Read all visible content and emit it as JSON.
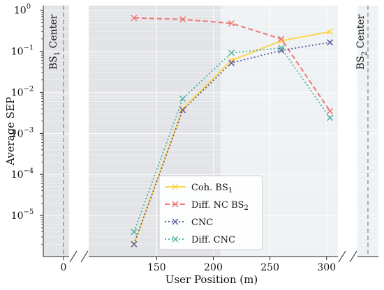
{
  "chart_data": {
    "type": "line",
    "title": "",
    "xlabel": "User Position (m)",
    "ylabel": "Average SEP",
    "yscale": "log",
    "ylim": [
      1e-06,
      1.3
    ],
    "xlim_main": [
      90,
      310
    ],
    "broken_x_axis": true,
    "x": [
      130,
      173,
      216,
      260,
      303
    ],
    "x_ticks": [
      150,
      200,
      250,
      300
    ],
    "x_tick_labels": [
      "150",
      "200",
      "250",
      "300"
    ],
    "left_panel_ticks": [
      "0"
    ],
    "y_tick_labels": [
      {
        "base": "10",
        "exp": "0"
      },
      {
        "base": "10",
        "exp": "−1"
      },
      {
        "base": "10",
        "exp": "−2"
      },
      {
        "base": "10",
        "exp": "−3"
      },
      {
        "base": "10",
        "exp": "−4"
      },
      {
        "base": "10",
        "exp": "−5"
      }
    ],
    "bs_labels": [
      {
        "text": "BS",
        "sub": "1",
        "suffix": " Center"
      },
      {
        "text": "BS",
        "sub": "2",
        "suffix": " Center"
      }
    ],
    "grid": true,
    "legend_position": "lower-center",
    "series": [
      {
        "name": "Coh. BS",
        "name_sub": "1",
        "color": "#FFD54F",
        "dash": "solid",
        "values": [
          2e-06,
          0.004,
          0.06,
          0.18,
          0.3
        ]
      },
      {
        "name": "Diff. NC BS",
        "name_sub": "2",
        "color": "#F07575",
        "dash": "dashed",
        "values": [
          0.65,
          0.6,
          0.48,
          0.2,
          0.0035
        ]
      },
      {
        "name": "CNC",
        "name_sub": "",
        "color": "#5E5A9E",
        "dash": "dotted",
        "values": [
          2e-06,
          0.0037,
          0.052,
          0.105,
          0.165
        ]
      },
      {
        "name": "Diff. CNC",
        "name_sub": "",
        "color": "#52B3A6",
        "dash": "dotted",
        "values": [
          4e-06,
          0.007,
          0.092,
          0.12,
          0.0024
        ]
      }
    ]
  }
}
